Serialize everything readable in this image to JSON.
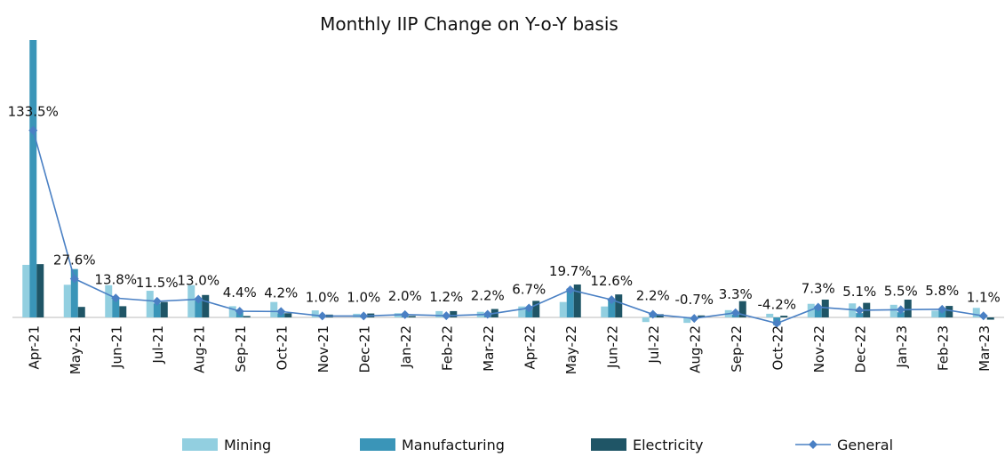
{
  "chart_data": {
    "type": "bar-line",
    "title": "Monthly IIP Change on Y-o-Y basis",
    "categories": [
      "Apr-21",
      "May-21",
      "Jun-21",
      "Jul-21",
      "Aug-21",
      "Sep-21",
      "Oct-21",
      "Nov-21",
      "Dec-21",
      "Jan-22",
      "Feb-22",
      "Mar-22",
      "Apr-22",
      "May-22",
      "Jun-22",
      "Jul-22",
      "Aug-22",
      "Sep-22",
      "Oct-22",
      "Nov-22",
      "Dec-22",
      "Jan-23",
      "Feb-23",
      "Mar-23"
    ],
    "series": [
      {
        "name": "Mining",
        "type": "bar",
        "color": "#92cfe0",
        "values": [
          37.5,
          23.3,
          23,
          19,
          23,
          8,
          11,
          5,
          2.6,
          3,
          4.5,
          4,
          7.8,
          11,
          7.8,
          -3.3,
          -3.9,
          5.2,
          2.6,
          9.7,
          10,
          9,
          4.8,
          6.8
        ]
      },
      {
        "name": "Manufacturing",
        "type": "bar",
        "color": "#3a95b8",
        "values": [
          198,
          34.5,
          13,
          10,
          12,
          4,
          3,
          0,
          0.6,
          1,
          0.2,
          1.4,
          5.6,
          20.7,
          12.9,
          3.1,
          -0.5,
          2,
          -5.6,
          6.4,
          3.1,
          3.7,
          5.6,
          0.5
        ]
      },
      {
        "name": "Electricity",
        "type": "bar",
        "color": "#1f5566",
        "values": [
          38,
          7.5,
          8,
          11,
          16,
          1,
          3,
          2,
          2.8,
          1,
          4.5,
          6,
          11.8,
          23.5,
          16.4,
          2.3,
          1.4,
          11.6,
          1.2,
          12.7,
          10.4,
          12.7,
          8.2,
          -1.6
        ]
      },
      {
        "name": "General",
        "type": "line",
        "color": "#4a80c4",
        "values": [
          133.5,
          27.6,
          13.8,
          11.5,
          13.0,
          4.4,
          4.2,
          1.0,
          1.0,
          2.0,
          1.2,
          2.2,
          6.7,
          19.7,
          12.6,
          2.2,
          -0.7,
          3.3,
          -4.2,
          7.3,
          5.1,
          5.5,
          5.8,
          1.1
        ],
        "value_labels": [
          "133.5%",
          "27.6%",
          "13.8%",
          "11.5%",
          "13.0%",
          "4.4%",
          "4.2%",
          "1.0%",
          "1.0%",
          "2.0%",
          "1.2%",
          "2.2%",
          "6.7%",
          "19.7%",
          "12.6%",
          "2.2%",
          "-0.7%",
          "3.3%",
          "-4.2%",
          "7.3%",
          "5.1%",
          "5.5%",
          "5.8%",
          "1.1%"
        ]
      }
    ],
    "legend": "bottom"
  }
}
